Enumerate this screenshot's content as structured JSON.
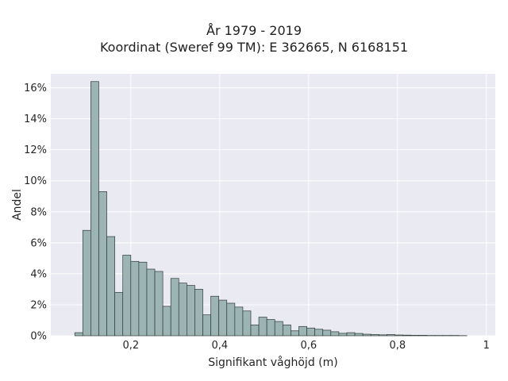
{
  "chart_data": {
    "type": "bar",
    "title_lines": [
      "År 1979 - 2019",
      "Koordinat (Sweref 99 TM): E 362665, N 6168151"
    ],
    "xlabel": "Signifikant våghöjd (m)",
    "ylabel": "Andel",
    "xlim": [
      0.02,
      1.02
    ],
    "ylim": [
      0,
      16.9
    ],
    "x_ticks": [
      0.2,
      0.4,
      0.6,
      0.8,
      1.0
    ],
    "x_tick_labels": [
      "0,2",
      "0,4",
      "0,6",
      "0,8",
      "1"
    ],
    "y_ticks": [
      0,
      2,
      4,
      6,
      8,
      10,
      12,
      14,
      16
    ],
    "y_tick_labels": [
      "0%",
      "2%",
      "4%",
      "6%",
      "8%",
      "10%",
      "12%",
      "14%",
      "16%"
    ],
    "grid": true,
    "bin_width": 0.018,
    "bin_starts": [
      0.074,
      0.092,
      0.11,
      0.128,
      0.146,
      0.164,
      0.182,
      0.2,
      0.218,
      0.236,
      0.254,
      0.272,
      0.29,
      0.308,
      0.326,
      0.344,
      0.362,
      0.38,
      0.398,
      0.416,
      0.434,
      0.452,
      0.47,
      0.488,
      0.506,
      0.524,
      0.542,
      0.56,
      0.578,
      0.596,
      0.614,
      0.632,
      0.65,
      0.668,
      0.686,
      0.704,
      0.722,
      0.74,
      0.758,
      0.776,
      0.794,
      0.812,
      0.83,
      0.848,
      0.866,
      0.884,
      0.902,
      0.92,
      0.938
    ],
    "values": [
      0.2,
      6.8,
      16.4,
      9.3,
      6.4,
      2.8,
      5.2,
      4.8,
      4.75,
      4.3,
      4.15,
      1.9,
      3.7,
      3.4,
      3.25,
      3.0,
      1.35,
      2.55,
      2.3,
      2.1,
      1.85,
      1.6,
      0.7,
      1.2,
      1.05,
      0.92,
      0.7,
      0.32,
      0.6,
      0.5,
      0.42,
      0.36,
      0.26,
      0.16,
      0.2,
      0.15,
      0.1,
      0.08,
      0.06,
      0.08,
      0.05,
      0.04,
      0.03,
      0.03,
      0.02,
      0.02,
      0.02,
      0.02,
      0.01
    ],
    "bar_color": "#9db4b4",
    "bar_edge_color": "#2f3b3b",
    "plot_bg": "#eaeaf2",
    "grid_color": "#ffffff"
  }
}
